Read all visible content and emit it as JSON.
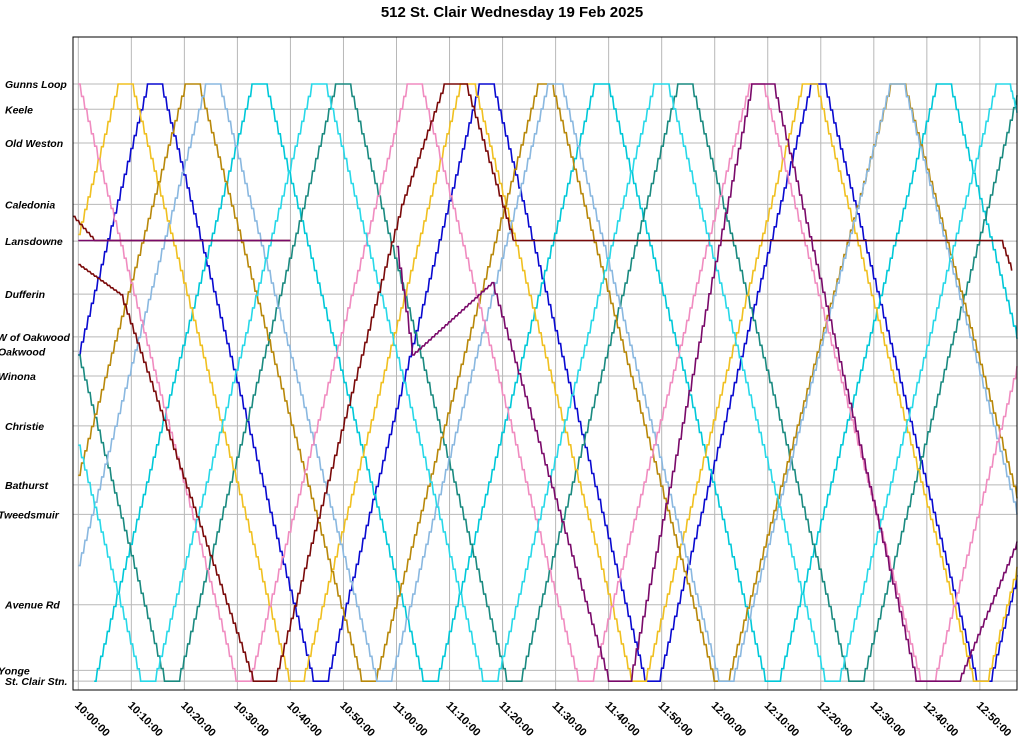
{
  "chart_data": {
    "type": "line",
    "title": "512 St. Clair Wednesday 19 Feb 2025",
    "x_axis": {
      "range": [
        "09:59:00",
        "12:57:00"
      ],
      "ticks": [
        "10:00:00",
        "10:10:00",
        "10:20:00",
        "10:30:00",
        "10:40:00",
        "10:50:00",
        "11:00:00",
        "11:10:00",
        "11:20:00",
        "11:30:00",
        "11:40:00",
        "11:50:00",
        "12:00:00",
        "12:10:00",
        "12:20:00",
        "12:30:00",
        "12:40:00",
        "12:50:00"
      ]
    },
    "y_axis": {
      "stops": [
        {
          "name": "Gunns Loop",
          "pos": 0.0
        },
        {
          "name": "Keele",
          "pos": 0.042
        },
        {
          "name": "Old Weston",
          "pos": 0.098
        },
        {
          "name": "Caledonia",
          "pos": 0.2
        },
        {
          "name": "Lansdowne",
          "pos": 0.261
        },
        {
          "name": "Dufferin",
          "pos": 0.349
        },
        {
          "name": "W of Oakwood",
          "pos": 0.42
        },
        {
          "name": "Oakwood",
          "pos": 0.444
        },
        {
          "name": "Winona",
          "pos": 0.485
        },
        {
          "name": "Christie",
          "pos": 0.568
        },
        {
          "name": "Bathurst",
          "pos": 0.666
        },
        {
          "name": "Tweedsmuir",
          "pos": 0.715
        },
        {
          "name": "Avenue Rd",
          "pos": 0.865
        },
        {
          "name": "Yonge",
          "pos": 0.974
        },
        {
          "name": "St. Clair Stn.",
          "pos": 0.992
        }
      ]
    },
    "grid": true,
    "legend": "none",
    "series_colors": [
      "#0a0ad0",
      "#00c8d8",
      "#1a8a80",
      "#f0c020",
      "#b8880a",
      "#7a0a0a",
      "#7a0a6a",
      "#8ab8e0",
      "#f08cc0",
      "#28d8e8"
    ],
    "series_stops": [
      {
        "color": "#0a0ad0",
        "t0": 0,
        "v0": 0.45,
        "half_period": 29,
        "direction": "up",
        "end": 177
      },
      {
        "color": "#00c8d8",
        "t0": 3,
        "v0": 0.992,
        "half_period": 30,
        "direction": "up",
        "end": 177
      },
      {
        "color": "#1a8a80",
        "t0": 0,
        "v0": 0.45,
        "half_period": 30,
        "direction": "down",
        "end": 177
      },
      {
        "color": "#f0c020",
        "t0": 0,
        "v0": 0.25,
        "half_period": 30,
        "direction": "up",
        "end": 177
      },
      {
        "color": "#b8880a",
        "t0": 0,
        "v0": 0.65,
        "half_period": 31,
        "direction": "up",
        "end": 177
      },
      {
        "color": "#8ab8e0",
        "t0": 0,
        "v0": 0.8,
        "half_period": 30,
        "direction": "up",
        "end": 177
      },
      {
        "color": "#f08cc0",
        "t0": 0,
        "v0": 0.0,
        "half_period": 30,
        "direction": "down",
        "end": 177
      },
      {
        "color": "#28d8e8",
        "t0": 0,
        "v0": 0.6,
        "half_period": 30,
        "direction": "down",
        "end": 177
      }
    ]
  }
}
